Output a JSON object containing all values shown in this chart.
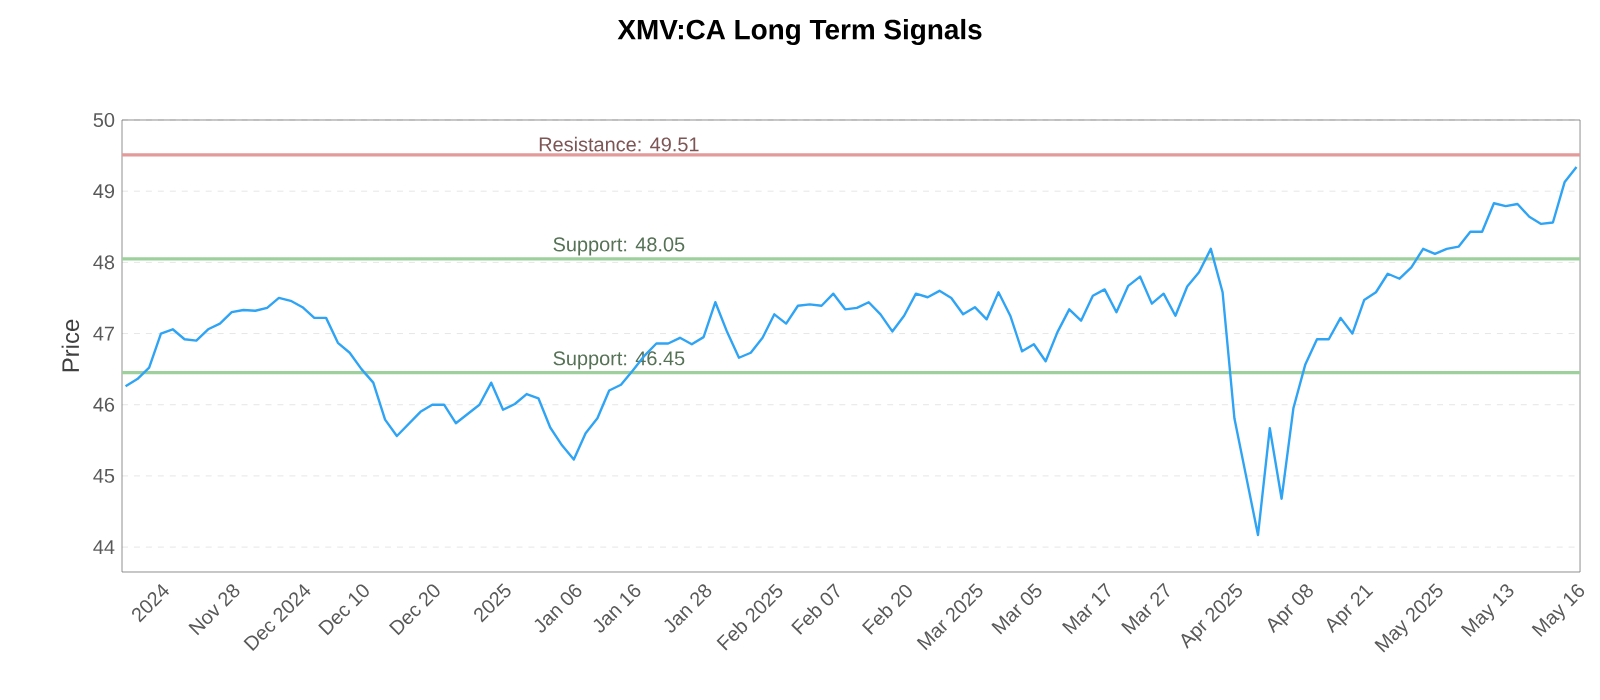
{
  "chart_data": {
    "type": "line",
    "title": "XMV:CA Long Term Signals",
    "ylabel": "Price",
    "categories": [
      null,
      null,
      null,
      "2024",
      null,
      null,
      null,
      null,
      null,
      "Nov 28",
      null,
      null,
      null,
      null,
      null,
      "Dec 2024",
      null,
      null,
      null,
      null,
      "Dec 10",
      null,
      null,
      null,
      null,
      null,
      "Dec 20",
      null,
      null,
      null,
      null,
      null,
      "2025",
      null,
      null,
      null,
      null,
      null,
      "Jan 06",
      null,
      null,
      null,
      null,
      "Jan 16",
      null,
      null,
      null,
      null,
      null,
      "Jan 28",
      null,
      null,
      null,
      null,
      null,
      "Feb 2025",
      null,
      null,
      null,
      null,
      "Feb 07",
      null,
      null,
      null,
      null,
      null,
      "Feb 20",
      null,
      null,
      null,
      null,
      null,
      "Mar 2025",
      null,
      null,
      null,
      null,
      "Mar 05",
      null,
      null,
      null,
      null,
      null,
      "Mar 17",
      null,
      null,
      null,
      null,
      "Mar 27",
      null,
      null,
      null,
      null,
      null,
      "Apr 2025",
      null,
      null,
      null,
      null,
      null,
      "Apr 08",
      null,
      null,
      null,
      null,
      "Apr 21",
      null,
      null,
      null,
      null,
      null,
      "May 2025",
      null,
      null,
      null,
      null,
      null,
      "May 13",
      null,
      null,
      null,
      null,
      null,
      "May 16"
    ],
    "series": [
      {
        "color": "#2fa4f5",
        "values": [
          46.26,
          46.36,
          46.52,
          47.0,
          47.06,
          46.92,
          46.9,
          47.06,
          47.14,
          47.3,
          47.33,
          47.32,
          47.36,
          47.5,
          47.46,
          47.37,
          47.22,
          47.22,
          46.87,
          46.73,
          46.5,
          46.31,
          45.79,
          45.56,
          45.73,
          45.9,
          46.0,
          46.0,
          45.74,
          45.87,
          46.0,
          46.31,
          45.93,
          46.01,
          46.15,
          46.09,
          45.68,
          45.43,
          45.23,
          45.6,
          45.81,
          46.2,
          46.28,
          46.48,
          46.69,
          46.86,
          46.86,
          46.94,
          46.85,
          46.95,
          47.44,
          47.02,
          46.66,
          46.73,
          46.94,
          47.27,
          47.14,
          47.39,
          47.41,
          47.39,
          47.56,
          47.34,
          47.36,
          47.44,
          47.27,
          47.03,
          47.25,
          47.56,
          47.51,
          47.6,
          47.5,
          47.27,
          47.37,
          47.2,
          47.58,
          47.25,
          46.75,
          46.85,
          46.61,
          47.02,
          47.34,
          47.18,
          47.53,
          47.62,
          47.3,
          47.67,
          47.8,
          47.42,
          47.56,
          47.25,
          47.66,
          47.86,
          48.19,
          47.58,
          45.81,
          44.99,
          44.17,
          45.67,
          44.68,
          45.95,
          46.56,
          46.92,
          46.92,
          47.22,
          47.0,
          47.47,
          47.58,
          47.84,
          47.77,
          47.93,
          48.19,
          48.12,
          48.19,
          48.22,
          48.43,
          48.43,
          48.83,
          48.79,
          48.82,
          48.64,
          48.54,
          48.56,
          49.13,
          49.34
        ]
      }
    ],
    "ylim": [
      43.65,
      50
    ],
    "yticks": [
      44,
      45,
      46,
      47,
      48,
      49,
      50
    ],
    "grid": "y",
    "ref_lines": [
      {
        "axis": "y",
        "value": 49.51,
        "label": "Resistance: 49.51",
        "color": "#e39a9a"
      },
      {
        "axis": "y",
        "value": 48.05,
        "label": "Support: 48.05",
        "color": "#9dd09d"
      },
      {
        "axis": "y",
        "value": 46.45,
        "label": "Support: 46.45",
        "color": "#9dd09d"
      }
    ]
  }
}
